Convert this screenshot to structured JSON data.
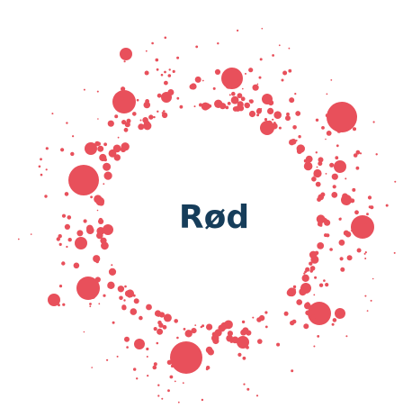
{
  "label": "Rød"
}
